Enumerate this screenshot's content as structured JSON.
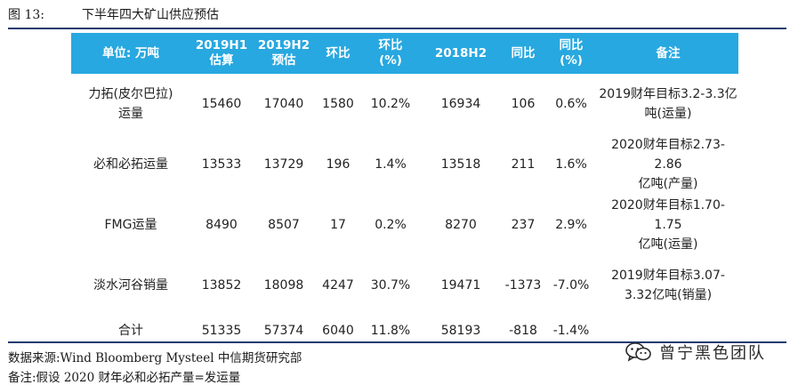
{
  "figure": {
    "number": "图 13:",
    "title": "下半年四大矿山供应预估"
  },
  "table": {
    "headers": [
      [
        "单位: 万吨"
      ],
      [
        "2019H1",
        "估算"
      ],
      [
        "2019H2",
        "预估"
      ],
      [
        "环比"
      ],
      [
        "环比",
        "(%)"
      ],
      [
        "2018H2"
      ],
      [
        "同比"
      ],
      [
        "同比",
        "(%)"
      ],
      [
        "备注"
      ]
    ],
    "rows": [
      {
        "name": [
          "力拓(皮尔巴拉)",
          "运量"
        ],
        "h1_2019": "15460",
        "h2_2019": "17040",
        "hoh": "1580",
        "hoh_pct": "10.2%",
        "h2_2018": "16934",
        "yoy": "106",
        "yoy_pct": "0.6%",
        "note": [
          "2019财年目标3.2-3.3亿",
          "吨(运量)"
        ]
      },
      {
        "name": [
          "必和必拓运量"
        ],
        "h1_2019": "13533",
        "h2_2019": "13729",
        "hoh": "196",
        "hoh_pct": "1.4%",
        "h2_2018": "13518",
        "yoy": "211",
        "yoy_pct": "1.6%",
        "note": [
          "2020财年目标2.73-2.86",
          "亿吨(产量)"
        ]
      },
      {
        "name": [
          "FMG运量"
        ],
        "h1_2019": "8490",
        "h2_2019": "8507",
        "hoh": "17",
        "hoh_pct": "0.2%",
        "h2_2018": "8270",
        "yoy": "237",
        "yoy_pct": "2.9%",
        "note": [
          "2020财年目标1.70-1.75",
          "亿吨(运量)"
        ]
      },
      {
        "name": [
          "淡水河谷销量"
        ],
        "h1_2019": "13852",
        "h2_2019": "18098",
        "hoh": "4247",
        "hoh_pct": "30.7%",
        "h2_2018": "19471",
        "yoy": "-1373",
        "yoy_pct": "-7.0%",
        "note": [
          "2019财年目标3.07-",
          "3.32亿吨(销量)"
        ]
      }
    ],
    "total": {
      "name": "合计",
      "h1_2019": "51335",
      "h2_2019": "57374",
      "hoh": "6040",
      "hoh_pct": "11.8%",
      "h2_2018": "58193",
      "yoy": "-818",
      "yoy_pct": "-1.4%"
    }
  },
  "source": "数据来源:Wind Bloomberg Mysteel 中信期货研究部",
  "remark": "备注:假设 2020 财年必和必拓产量=发运量",
  "watermark": {
    "text": "曾宁黑色团队",
    "icon": "wechat-icon",
    "color": "#2b2b2b"
  },
  "colors": {
    "header_bg": "#28a8e0",
    "rule": "#1f3a6e"
  }
}
